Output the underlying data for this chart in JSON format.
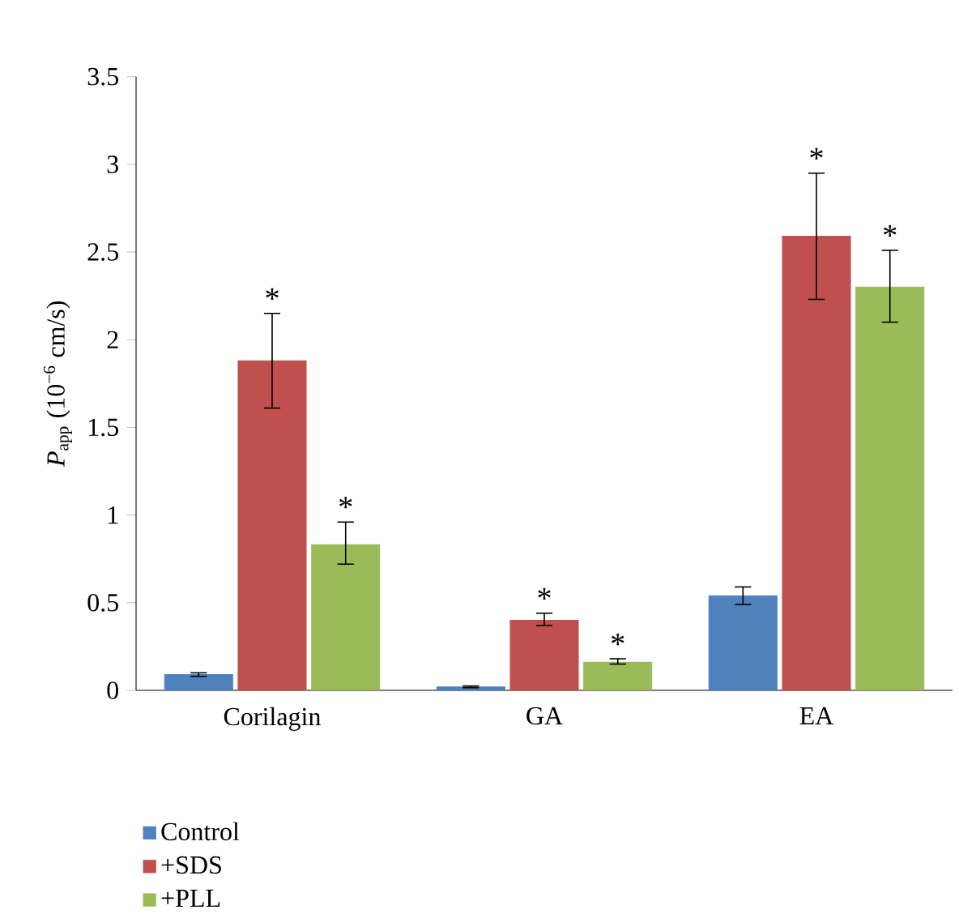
{
  "chart_data": {
    "type": "bar",
    "ylabel": "*P*$_{app}$ (10$^{−6}$ cm/s)",
    "categories": [
      "Corilagin",
      "GA",
      "EA"
    ],
    "series": [
      {
        "name": "Control",
        "color": "#4f81bd",
        "values": [
          0.09,
          0.02,
          0.54
        ],
        "errors": [
          0.01,
          0.005,
          0.05
        ]
      },
      {
        "name": "+SDS",
        "color": "#c0504d",
        "values": [
          1.88,
          0.4,
          2.59
        ],
        "errors": [
          [
            1.61,
            2.15
          ],
          [
            0.37,
            0.44
          ],
          [
            2.23,
            2.95
          ]
        ],
        "value_labels": [
          "*",
          "*",
          "*"
        ]
      },
      {
        "name": "+PLL",
        "color": "#9bbb59",
        "values": [
          0.83,
          0.16,
          2.3
        ],
        "errors": [
          [
            0.72,
            0.96
          ],
          [
            0.15,
            0.18
          ],
          [
            2.1,
            2.51
          ]
        ],
        "value_labels": [
          "*",
          "*",
          "*"
        ]
      }
    ],
    "ylim": [
      0,
      3.5
    ],
    "yticks": [
      0,
      0.5,
      1,
      1.5,
      2,
      2.5,
      3,
      3.5
    ],
    "legend": "bottom left",
    "grid": false
  }
}
